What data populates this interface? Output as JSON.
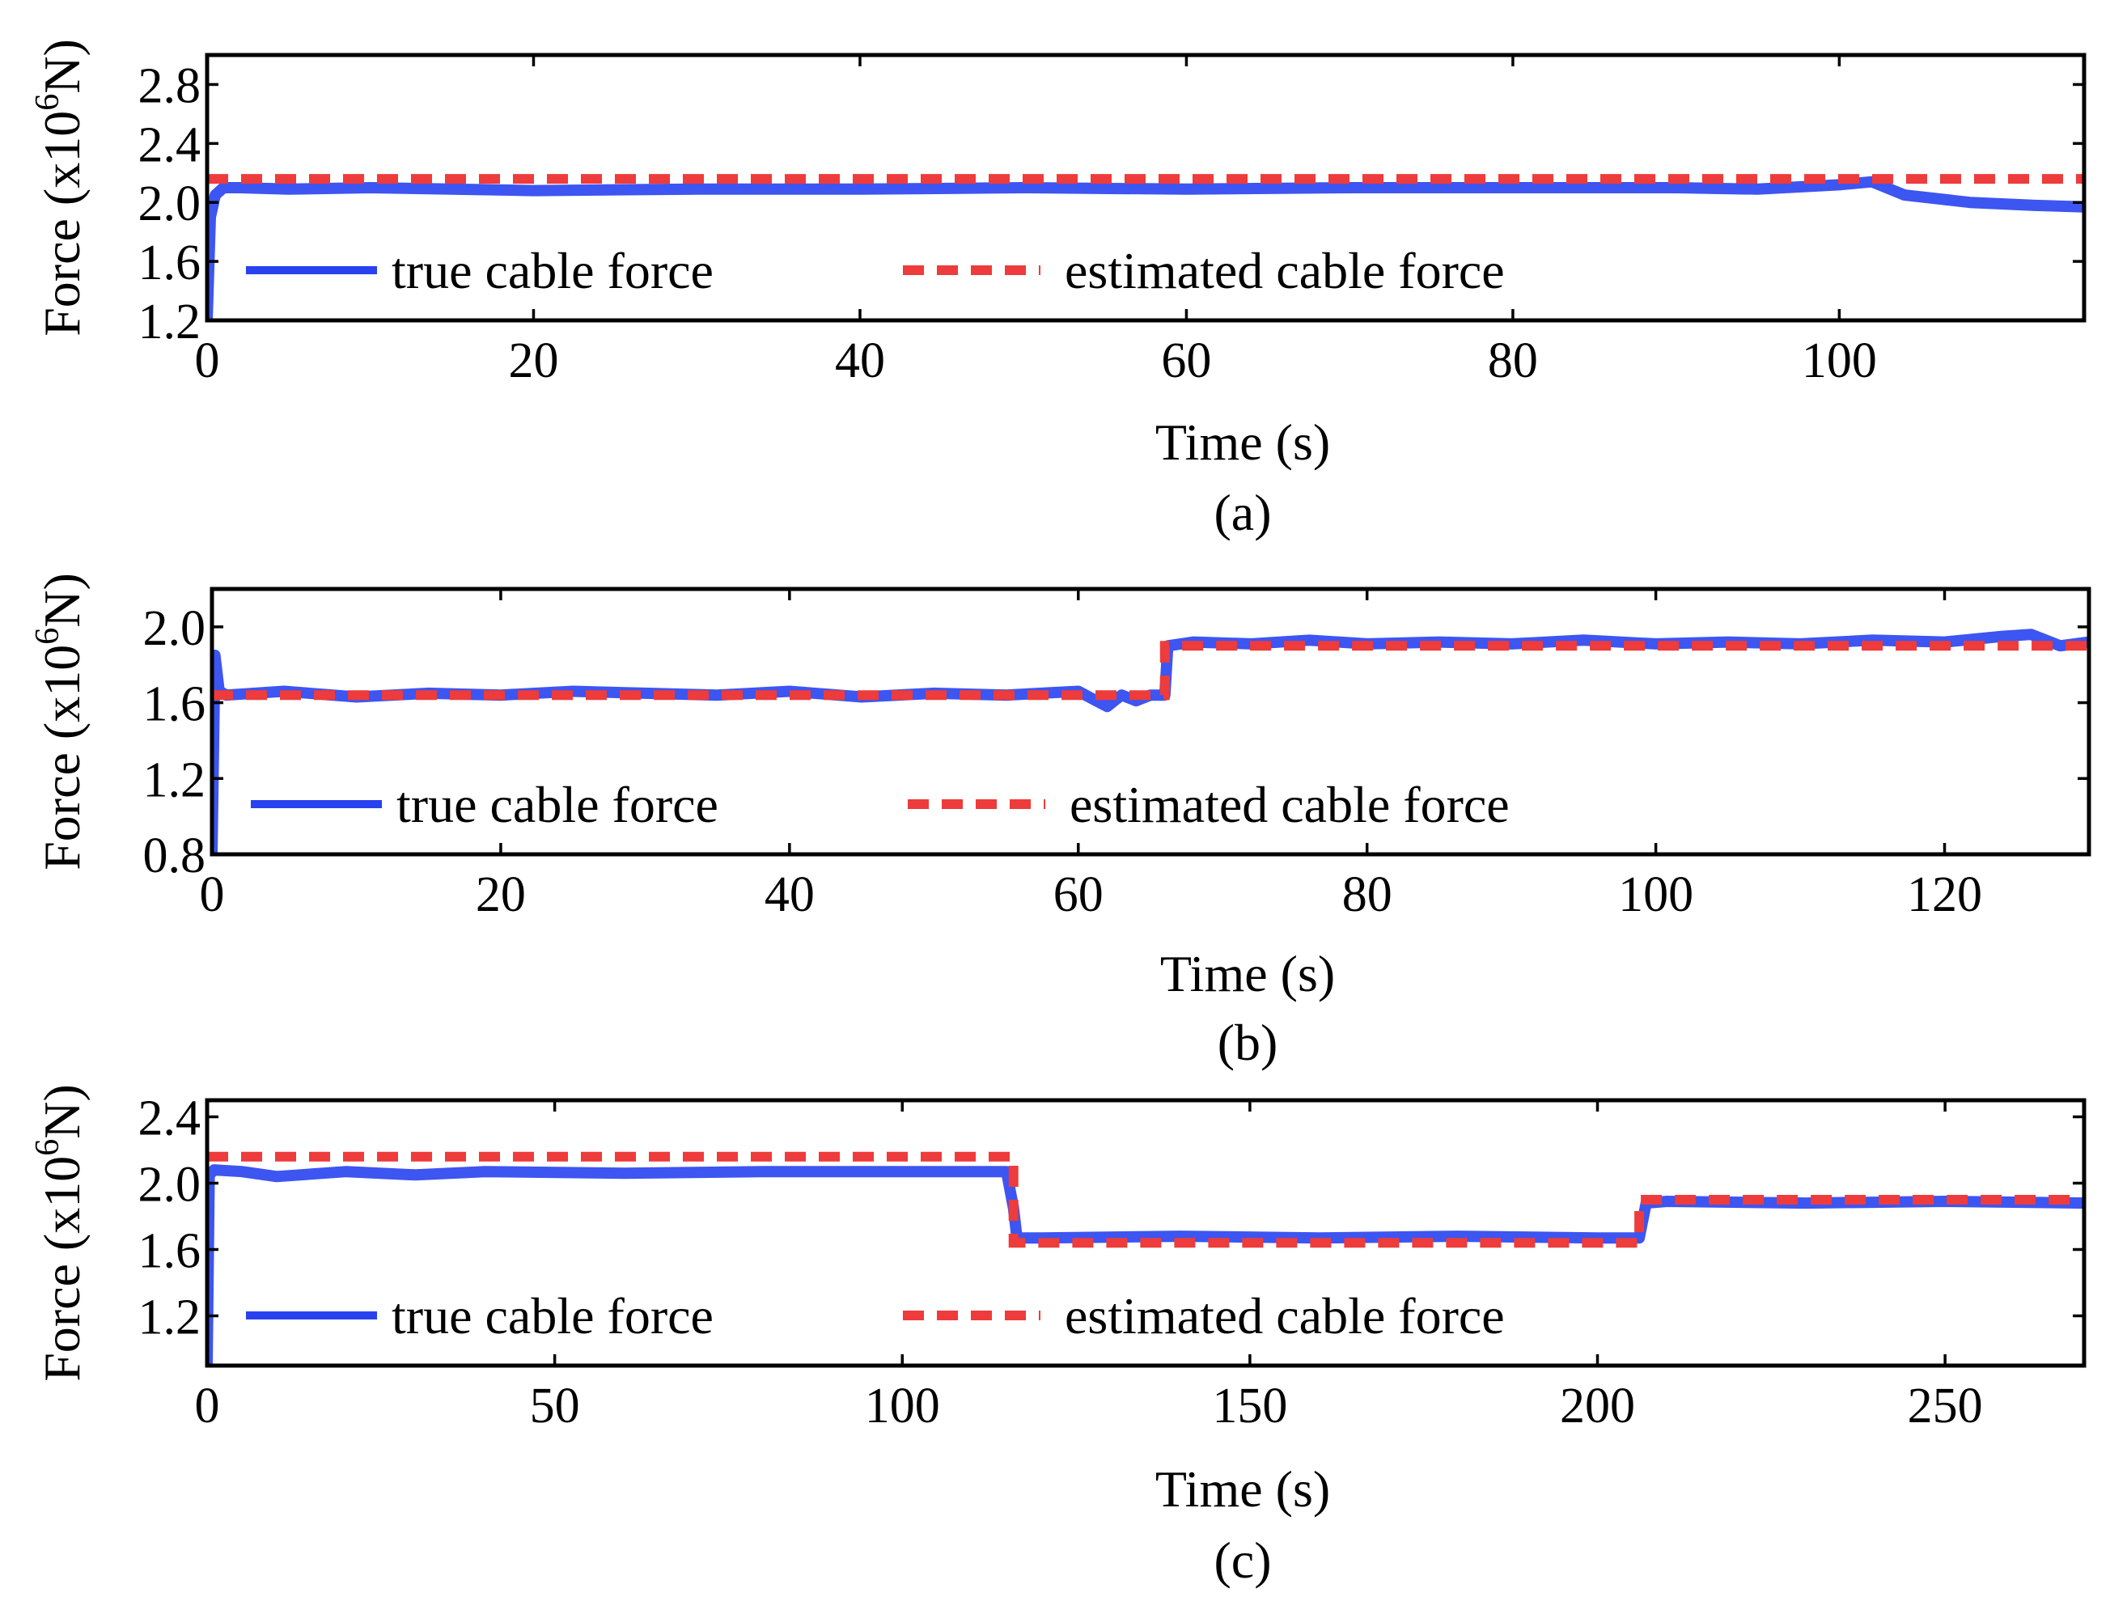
{
  "colors": {
    "true_series": "#2842f0",
    "estimated_series": "#ee3b3b",
    "axis": "#000000",
    "background": "#ffffff"
  },
  "legend": {
    "true_label": "true cable force",
    "estimated_label": "estimated cable force"
  },
  "chart_data": [
    {
      "type": "line",
      "caption": "(a)",
      "xlabel": "Time (s)",
      "ylabel_main": "Force (x10",
      "ylabel_sup": "6",
      "ylabel_end": "N)",
      "xlim": [
        0,
        115
      ],
      "ylim": [
        1.2,
        3.0
      ],
      "xticks": [
        0,
        20,
        40,
        60,
        80,
        100
      ],
      "xtick_labels": [
        "0",
        "20",
        "40",
        "60",
        "80",
        "100"
      ],
      "yticks": [
        1.2,
        1.6,
        2.0,
        2.4,
        2.8
      ],
      "ytick_labels": [
        "1.2",
        "1.6",
        "2.0",
        "2.4",
        "2.8"
      ],
      "legend_location": "lower-left",
      "series": [
        {
          "name": "true cable force",
          "style": "solid",
          "x": [
            0,
            0.2,
            0.5,
            1,
            2,
            5,
            10,
            20,
            30,
            40,
            50,
            60,
            70,
            80,
            90,
            95,
            100,
            102,
            104,
            108,
            112,
            115
          ],
          "y": [
            1.2,
            1.9,
            2.05,
            2.1,
            2.1,
            2.09,
            2.1,
            2.08,
            2.09,
            2.09,
            2.1,
            2.09,
            2.1,
            2.1,
            2.1,
            2.09,
            2.12,
            2.14,
            2.05,
            2.0,
            1.98,
            1.97
          ]
        },
        {
          "name": "estimated cable force",
          "style": "dashed",
          "x": [
            0,
            115
          ],
          "y": [
            2.16,
            2.16
          ]
        }
      ]
    },
    {
      "type": "line",
      "caption": "(b)",
      "xlabel": "Time (s)",
      "ylabel_main": "Force (x10",
      "ylabel_sup": "6",
      "ylabel_end": "N)",
      "xlim": [
        0,
        130
      ],
      "ylim": [
        0.8,
        2.2
      ],
      "xticks": [
        0,
        20,
        40,
        60,
        80,
        100,
        120
      ],
      "xtick_labels": [
        "0",
        "20",
        "40",
        "60",
        "80",
        "100",
        "120"
      ],
      "yticks": [
        0.8,
        1.2,
        1.6,
        2.0
      ],
      "ytick_labels": [
        "0.8",
        "1.2",
        "1.6",
        "2.0"
      ],
      "legend_location": "lower-left",
      "series": [
        {
          "name": "true cable force",
          "style": "solid",
          "x": [
            0,
            0.2,
            0.5,
            1,
            5,
            10,
            15,
            20,
            25,
            30,
            35,
            40,
            45,
            50,
            55,
            60,
            61,
            62,
            63,
            64,
            65,
            66,
            66.2,
            68,
            72,
            76,
            80,
            85,
            90,
            95,
            100,
            105,
            110,
            115,
            120,
            124,
            126,
            128,
            130
          ],
          "y": [
            0.8,
            1.85,
            1.66,
            1.64,
            1.66,
            1.63,
            1.65,
            1.64,
            1.66,
            1.65,
            1.64,
            1.66,
            1.63,
            1.65,
            1.64,
            1.66,
            1.62,
            1.58,
            1.64,
            1.61,
            1.64,
            1.64,
            1.9,
            1.92,
            1.91,
            1.93,
            1.91,
            1.92,
            1.91,
            1.93,
            1.91,
            1.92,
            1.91,
            1.93,
            1.92,
            1.95,
            1.96,
            1.9,
            1.92
          ]
        },
        {
          "name": "estimated cable force",
          "style": "dashed",
          "x": [
            0,
            66,
            66,
            130
          ],
          "y": [
            1.64,
            1.64,
            1.9,
            1.9
          ]
        }
      ]
    },
    {
      "type": "line",
      "caption": "(c)",
      "xlabel": "Time (s)",
      "ylabel_main": "Force (x10",
      "ylabel_sup": "6",
      "ylabel_end": "N)",
      "xlim": [
        0,
        270
      ],
      "ylim": [
        0.9,
        2.5
      ],
      "xticks": [
        0,
        50,
        100,
        150,
        200,
        250
      ],
      "xtick_labels": [
        "0",
        "50",
        "100",
        "150",
        "200",
        "250"
      ],
      "yticks": [
        1.2,
        1.6,
        2.0,
        2.4
      ],
      "ytick_labels": [
        "1.2",
        "1.6",
        "2.0",
        "2.4"
      ],
      "legend_location": "lower-left",
      "series": [
        {
          "name": "true cable force",
          "style": "solid",
          "x": [
            0,
            0.3,
            1,
            5,
            10,
            20,
            30,
            40,
            60,
            80,
            100,
            115,
            116,
            116.5,
            120,
            140,
            160,
            180,
            200,
            206,
            207,
            210,
            230,
            250,
            270
          ],
          "y": [
            0.9,
            2.05,
            2.08,
            2.07,
            2.04,
            2.07,
            2.05,
            2.07,
            2.06,
            2.07,
            2.07,
            2.07,
            1.85,
            1.67,
            1.67,
            1.68,
            1.67,
            1.68,
            1.67,
            1.67,
            1.88,
            1.89,
            1.88,
            1.89,
            1.88
          ]
        },
        {
          "name": "estimated cable force",
          "style": "dashed",
          "x": [
            0,
            116,
            116,
            206,
            206,
            270
          ],
          "y": [
            2.16,
            2.16,
            1.64,
            1.64,
            1.9,
            1.9
          ]
        }
      ]
    }
  ]
}
